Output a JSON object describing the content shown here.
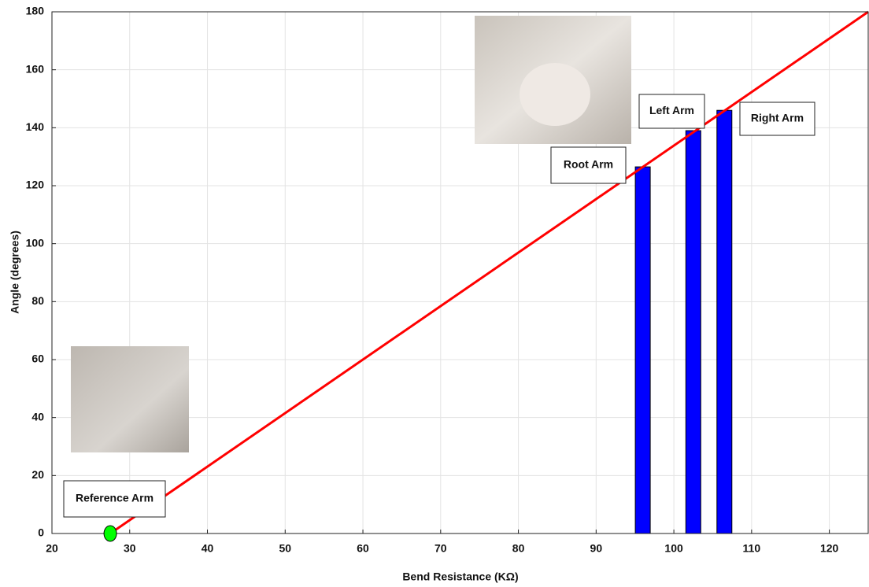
{
  "chart_data": {
    "type": "combo",
    "xlabel": "Bend Resistance (KΩ)",
    "ylabel": "Angle (degrees)",
    "xlim": [
      20,
      125
    ],
    "xticks": [
      20,
      30,
      40,
      50,
      60,
      70,
      80,
      90,
      100,
      110,
      120
    ],
    "ylim": [
      0,
      180
    ],
    "yticks": [
      0,
      20,
      40,
      60,
      80,
      100,
      120,
      140,
      160,
      180
    ],
    "grid": true,
    "bars": {
      "x": [
        96,
        102.5,
        106.5
      ],
      "values": [
        126.5,
        139,
        146
      ],
      "color": "#0000ff"
    },
    "line": {
      "x": [
        27.5,
        125
      ],
      "values": [
        0,
        180
      ],
      "color": "#ff0000"
    },
    "point": {
      "x": [
        27.5
      ],
      "values": [
        0
      ],
      "color": "#00ff00"
    },
    "annotations": [
      "Reference Arm",
      "Root Arm",
      "Left Arm",
      "Right Arm"
    ]
  }
}
